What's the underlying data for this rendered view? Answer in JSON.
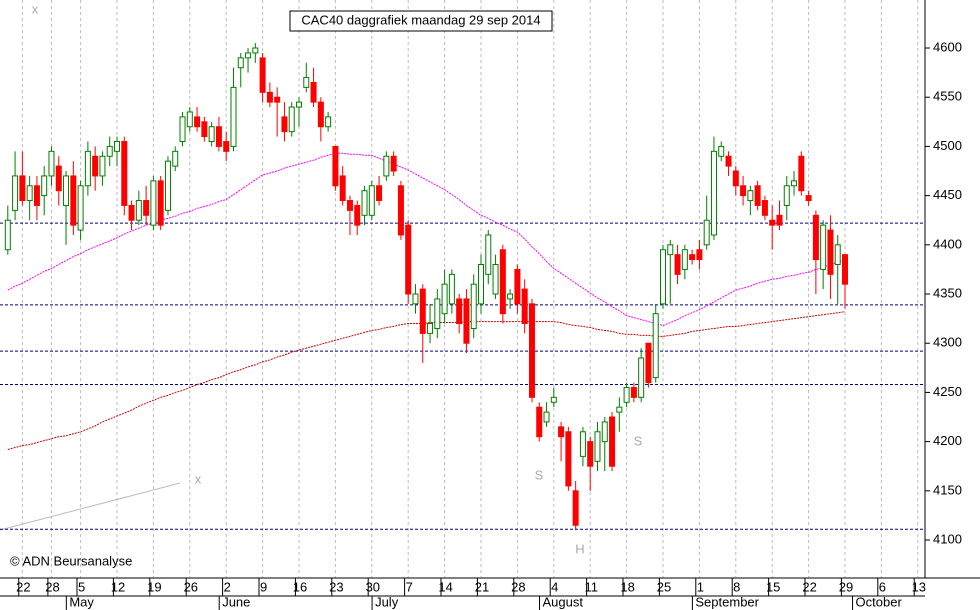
{
  "chart_data": {
    "type": "candlestick",
    "title": "CAC40 daggrafiek maandag 29 sep 2014",
    "credit": "© ADN Beursanalyse",
    "annotations": [
      "S",
      "S",
      "H",
      "x",
      "x"
    ],
    "ylim": [
      4061.4,
      4648.8
    ],
    "yticks": [
      4100,
      4150,
      4200,
      4250,
      4300,
      4350,
      4400,
      4450,
      4500,
      4550,
      4600
    ],
    "up_color": "#008000",
    "down_color": "#ff0000",
    "hlines": {
      "color": "#000080",
      "values": [
        4422,
        4339,
        4292,
        4258,
        4111
      ]
    },
    "categories": [
      null,
      null,
      "22",
      null,
      null,
      null,
      "28",
      null,
      null,
      null,
      "5",
      null,
      null,
      null,
      null,
      "12",
      null,
      null,
      null,
      null,
      "19",
      null,
      null,
      null,
      null,
      "26",
      null,
      null,
      null,
      null,
      "2",
      null,
      null,
      null,
      null,
      "9",
      null,
      null,
      null,
      null,
      "16",
      null,
      null,
      null,
      null,
      "23",
      null,
      null,
      null,
      null,
      "30",
      null,
      null,
      null,
      null,
      "7",
      null,
      null,
      null,
      null,
      "14",
      null,
      null,
      null,
      null,
      "21",
      null,
      null,
      null,
      null,
      "28",
      null,
      null,
      null,
      null,
      "4",
      null,
      null,
      null,
      null,
      "11",
      null,
      null,
      null,
      null,
      "18",
      null,
      null,
      null,
      null,
      "25",
      null,
      null,
      null,
      null,
      "1",
      null,
      null,
      null,
      null,
      "8",
      null,
      null,
      null,
      null,
      "15",
      null,
      null,
      null,
      null,
      "22",
      null,
      null,
      null,
      null,
      "29",
      null,
      null,
      null,
      null,
      "6",
      null,
      null,
      null,
      null,
      "13"
    ],
    "month_labels": [
      null,
      null,
      null,
      null,
      null,
      null,
      null,
      null,
      null,
      "May",
      null,
      null,
      null,
      null,
      null,
      null,
      null,
      null,
      null,
      null,
      null,
      null,
      null,
      null,
      null,
      null,
      null,
      null,
      null,
      null,
      "June",
      null,
      null,
      null,
      null,
      null,
      null,
      null,
      null,
      null,
      null,
      null,
      null,
      null,
      null,
      null,
      null,
      null,
      null,
      null,
      null,
      "July",
      null,
      null,
      null,
      null,
      null,
      null,
      null,
      null,
      null,
      null,
      null,
      null,
      null,
      null,
      null,
      null,
      null,
      null,
      null,
      null,
      null,
      null,
      "August",
      null,
      null,
      null,
      null,
      null,
      null,
      null,
      null,
      null,
      null,
      null,
      null,
      null,
      null,
      null,
      null,
      null,
      null,
      null,
      null,
      "September",
      null,
      null,
      null,
      null,
      null,
      null,
      null,
      null,
      null,
      null,
      null,
      null,
      null,
      null,
      null,
      null,
      null,
      null,
      null,
      null,
      null,
      "October",
      null,
      null,
      null,
      null,
      null,
      null,
      null,
      null
    ],
    "ohlc": [
      [
        4395,
        4440,
        4390,
        4425
      ],
      [
        4435,
        4495,
        4425,
        4470
      ],
      [
        4470,
        4495,
        4440,
        4445
      ],
      [
        4445,
        4470,
        4425,
        4460
      ],
      [
        4460,
        4470,
        4425,
        4440
      ],
      [
        4450,
        4480,
        4430,
        4470
      ],
      [
        4470,
        4500,
        4460,
        4495
      ],
      [
        4480,
        4490,
        4440,
        4455
      ],
      [
        4440,
        4475,
        4400,
        4470
      ],
      [
        4470,
        4485,
        4410,
        4420
      ],
      [
        4415,
        4465,
        4405,
        4460
      ],
      [
        4460,
        4505,
        4450,
        4495
      ],
      [
        4490,
        4500,
        4455,
        4470
      ],
      [
        4470,
        4495,
        4460,
        4490
      ],
      [
        4490,
        4510,
        4480,
        4500
      ],
      [
        4495,
        4510,
        4480,
        4505
      ],
      [
        4505,
        4510,
        4430,
        4440
      ],
      [
        4440,
        4445,
        4415,
        4425
      ],
      [
        4425,
        4455,
        4420,
        4445
      ],
      [
        4445,
        4460,
        4420,
        4430
      ],
      [
        4420,
        4470,
        4415,
        4465
      ],
      [
        4465,
        4470,
        4415,
        4420
      ],
      [
        4435,
        4490,
        4430,
        4485
      ],
      [
        4480,
        4500,
        4475,
        4495
      ],
      [
        4505,
        4535,
        4500,
        4530
      ],
      [
        4520,
        4540,
        4515,
        4535
      ],
      [
        4530,
        4540,
        4515,
        4520
      ],
      [
        4525,
        4530,
        4505,
        4510
      ],
      [
        4505,
        4525,
        4500,
        4520
      ],
      [
        4520,
        4530,
        4495,
        4500
      ],
      [
        4505,
        4515,
        4485,
        4495
      ],
      [
        4500,
        4580,
        4495,
        4560
      ],
      [
        4580,
        4595,
        4560,
        4590
      ],
      [
        4590,
        4600,
        4575,
        4595
      ],
      [
        4595,
        4605,
        4585,
        4600
      ],
      [
        4590,
        4595,
        4545,
        4555
      ],
      [
        4555,
        4565,
        4540,
        4545
      ],
      [
        4550,
        4560,
        4510,
        4545
      ],
      [
        4530,
        4545,
        4505,
        4515
      ],
      [
        4515,
        4545,
        4510,
        4540
      ],
      [
        4540,
        4550,
        4520,
        4545
      ],
      [
        4560,
        4585,
        4555,
        4570
      ],
      [
        4565,
        4580,
        4540,
        4545
      ],
      [
        4545,
        4550,
        4505,
        4520
      ],
      [
        4520,
        4535,
        4515,
        4530
      ],
      [
        4500,
        4500,
        4455,
        4460
      ],
      [
        4470,
        4480,
        4440,
        4445
      ],
      [
        4445,
        4450,
        4410,
        4435
      ],
      [
        4440,
        4445,
        4410,
        4420
      ],
      [
        4430,
        4460,
        4420,
        4455
      ],
      [
        4430,
        4465,
        4425,
        4460
      ],
      [
        4460,
        4470,
        4440,
        4445
      ],
      [
        4470,
        4495,
        4465,
        4490
      ],
      [
        4490,
        4495,
        4470,
        4475
      ],
      [
        4460,
        4465,
        4405,
        4410
      ],
      [
        4420,
        4425,
        4340,
        4350
      ],
      [
        4340,
        4360,
        4330,
        4350
      ],
      [
        4355,
        4360,
        4280,
        4310
      ],
      [
        4310,
        4340,
        4300,
        4320
      ],
      [
        4315,
        4355,
        4305,
        4345
      ],
      [
        4330,
        4375,
        4320,
        4360
      ],
      [
        4340,
        4375,
        4330,
        4370
      ],
      [
        4345,
        4350,
        4310,
        4320
      ],
      [
        4345,
        4355,
        4290,
        4300
      ],
      [
        4315,
        4370,
        4305,
        4360
      ],
      [
        4340,
        4390,
        4330,
        4380
      ],
      [
        4370,
        4415,
        4360,
        4410
      ],
      [
        4350,
        4390,
        4345,
        4380
      ],
      [
        4395,
        4400,
        4320,
        4330
      ],
      [
        4345,
        4355,
        4335,
        4350
      ],
      [
        4375,
        4380,
        4330,
        4340
      ],
      [
        4355,
        4365,
        4310,
        4320
      ],
      [
        4340,
        4345,
        4240,
        4245
      ],
      [
        4235,
        4240,
        4200,
        4205
      ],
      [
        4220,
        4240,
        4215,
        4230
      ],
      [
        4240,
        4255,
        4235,
        4245
      ],
      [
        4215,
        4220,
        4180,
        4205
      ],
      [
        4210,
        4215,
        4150,
        4155
      ],
      [
        4150,
        4160,
        4110,
        4115
      ],
      [
        4185,
        4215,
        4175,
        4210
      ],
      [
        4200,
        4205,
        4150,
        4175
      ],
      [
        4180,
        4220,
        4170,
        4210
      ],
      [
        4200,
        4225,
        4170,
        4220
      ],
      [
        4225,
        4230,
        4170,
        4175
      ],
      [
        4230,
        4245,
        4210,
        4235
      ],
      [
        4240,
        4260,
        4235,
        4255
      ],
      [
        4255,
        4260,
        4240,
        4245
      ],
      [
        4245,
        4295,
        4240,
        4285
      ],
      [
        4300,
        4300,
        4255,
        4260
      ],
      [
        4265,
        4340,
        4260,
        4330
      ],
      [
        4340,
        4400,
        4335,
        4395
      ],
      [
        4390,
        4405,
        4340,
        4400
      ],
      [
        4390,
        4400,
        4360,
        4370
      ],
      [
        4375,
        4400,
        4365,
        4395
      ],
      [
        4390,
        4395,
        4380,
        4385
      ],
      [
        4395,
        4405,
        4375,
        4385
      ],
      [
        4400,
        4450,
        4395,
        4425
      ],
      [
        4410,
        4510,
        4405,
        4495
      ],
      [
        4490,
        4505,
        4485,
        4500
      ],
      [
        4490,
        4495,
        4470,
        4480
      ],
      [
        4475,
        4480,
        4450,
        4460
      ],
      [
        4460,
        4470,
        4440,
        4450
      ],
      [
        4445,
        4460,
        4430,
        4455
      ],
      [
        4460,
        4465,
        4435,
        4440
      ],
      [
        4445,
        4450,
        4425,
        4430
      ],
      [
        4425,
        4440,
        4395,
        4420
      ],
      [
        4430,
        4445,
        4415,
        4420
      ],
      [
        4440,
        4470,
        4425,
        4460
      ],
      [
        4460,
        4475,
        4450,
        4465
      ],
      [
        4490,
        4495,
        4450,
        4455
      ],
      [
        4450,
        4455,
        4440,
        4445
      ],
      [
        4430,
        4435,
        4350,
        4385
      ],
      [
        4375,
        4425,
        4355,
        4420
      ],
      [
        4415,
        4430,
        4345,
        4370
      ],
      [
        4380,
        4410,
        4340,
        4400
      ],
      [
        4390,
        4390,
        4335,
        4360
      ],
      null,
      null,
      null,
      null,
      null,
      null,
      null,
      null,
      null,
      null
    ],
    "lines": [
      {
        "color": "#ff00ff",
        "values": [
          4354,
          4358,
          4361,
          4365,
          4369,
          4373,
          4376,
          4380,
          4384,
          4388,
          4391,
          4395,
          4398,
          4401,
          4404,
          4407,
          4411,
          4414,
          4417,
          4420,
          4422,
          4425,
          4427,
          4429,
          4432,
          4434,
          4437,
          4439,
          4441,
          4444,
          4446,
          4451,
          4456,
          4461,
          4466,
          4471,
          4473,
          4475,
          4478,
          4480,
          4482,
          4484,
          4486,
          4489,
          4491,
          4493,
          4493,
          4492,
          4492,
          4491,
          4491,
          4488,
          4485,
          4482,
          4479,
          4476,
          4472,
          4468,
          4464,
          4460,
          4456,
          4451,
          4446,
          4440,
          4435,
          4430,
          4427,
          4423,
          4420,
          4416,
          4413,
          4406,
          4398,
          4391,
          4383,
          4376,
          4371,
          4366,
          4361,
          4356,
          4351,
          4346,
          4342,
          4337,
          4333,
          4328,
          4326,
          4324,
          4322,
          4320,
          4318,
          4321,
          4324,
          4328,
          4331,
          4334,
          4338,
          4342,
          4346,
          4350,
          4354,
          4356,
          4358,
          4361,
          4363,
          4365,
          4366,
          4368,
          4369,
          4371,
          4372,
          4375,
          4377,
          4380,
          4382,
          4385,
          null,
          null,
          null,
          null,
          null,
          null,
          null,
          null,
          null,
          null
        ]
      },
      {
        "color": "#cc0000",
        "values": [
          4192,
          4194,
          4196,
          4197,
          4199,
          4201,
          4203,
          4205,
          4206,
          4208,
          4210,
          4213,
          4216,
          4220,
          4223,
          4226,
          4229,
          4232,
          4236,
          4239,
          4242,
          4245,
          4247,
          4250,
          4252,
          4255,
          4258,
          4260,
          4263,
          4265,
          4268,
          4271,
          4273,
          4276,
          4278,
          4281,
          4283,
          4286,
          4288,
          4291,
          4293,
          4295,
          4297,
          4299,
          4301,
          4303,
          4305,
          4307,
          4309,
          4311,
          4313,
          4314,
          4316,
          4317,
          4319,
          4320,
          4320,
          4320,
          4321,
          4321,
          4321,
          4321,
          4321,
          4322,
          4322,
          4322,
          4322,
          4322,
          4322,
          4322,
          4322,
          4322,
          4322,
          4322,
          4322,
          4322,
          4321,
          4319,
          4318,
          4317,
          4316,
          4314,
          4313,
          4312,
          4310,
          4309,
          4309,
          4308,
          4308,
          4307,
          4307,
          4308,
          4309,
          4310,
          4312,
          4313,
          4314,
          4315,
          4316,
          4317,
          4317,
          4318,
          4319,
          4320,
          4321,
          4322,
          4323,
          4324,
          4325,
          4326,
          4327,
          4328,
          4329,
          4330,
          4331,
          4332,
          null,
          null,
          null,
          null,
          null,
          null,
          null,
          null,
          null,
          null
        ]
      }
    ]
  }
}
